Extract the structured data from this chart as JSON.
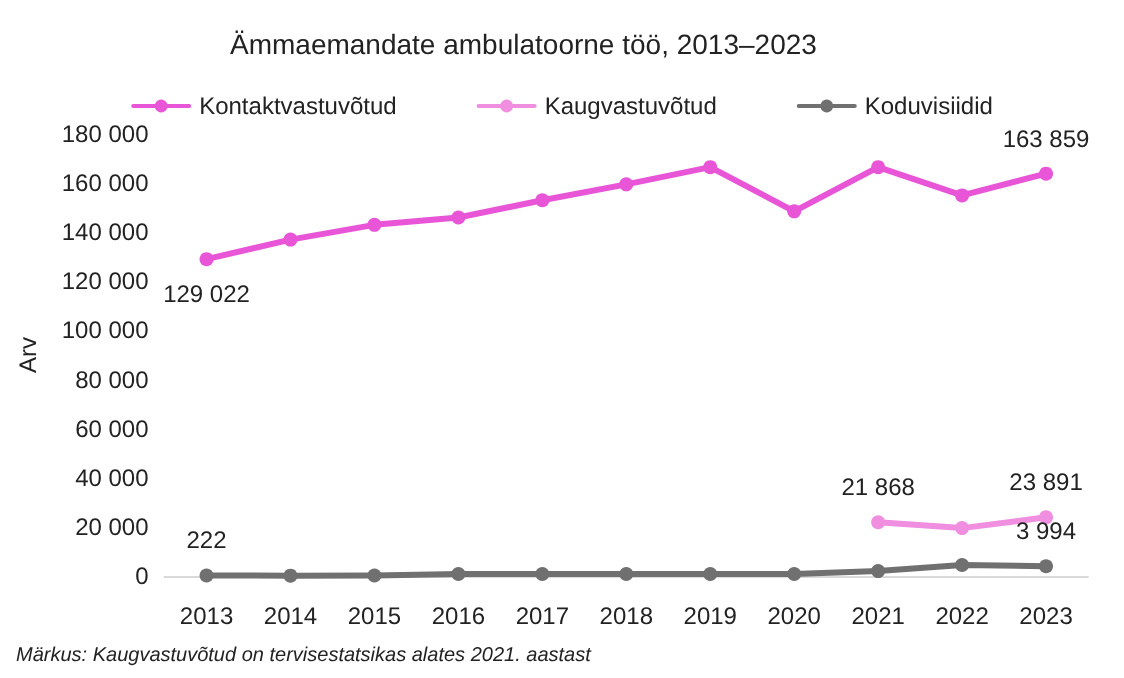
{
  "chart_data": {
    "type": "line",
    "title": "Ämmaemandate ambulatoorne töö, 2013–2023",
    "ylabel": "Arv",
    "annotations": [
      "Märkus: Kaugvastuvõtud on tervisestatsikas alates 2021. aastast"
    ],
    "categories": [
      "2013",
      "2014",
      "2015",
      "2016",
      "2017",
      "2018",
      "2019",
      "2020",
      "2021",
      "2022",
      "2023"
    ],
    "series": [
      {
        "name": "Kontaktvastuvõtud",
        "color": "#e855d6",
        "values": [
          129022,
          137000,
          143000,
          146000,
          153000,
          159500,
          166500,
          148500,
          166500,
          155000,
          163859
        ],
        "value_labels": [
          "129 022",
          null,
          null,
          null,
          null,
          null,
          null,
          null,
          null,
          null,
          "163 859"
        ]
      },
      {
        "name": "Kaugvastuvõtud",
        "color": "#f08ee0",
        "values": [
          null,
          null,
          null,
          null,
          null,
          null,
          null,
          null,
          21868,
          19500,
          23891
        ],
        "value_labels": [
          null,
          null,
          null,
          null,
          null,
          null,
          null,
          null,
          "21 868",
          null,
          "23 891"
        ]
      },
      {
        "name": "Koduvisiidid",
        "color": "#707070",
        "values": [
          222,
          150,
          200,
          800,
          800,
          800,
          800,
          800,
          2000,
          4500,
          3994
        ],
        "value_labels": [
          "222",
          null,
          null,
          null,
          null,
          null,
          null,
          null,
          null,
          null,
          "3 994"
        ]
      }
    ],
    "ylim": [
      0,
      180000
    ],
    "yticks": [
      0,
      20000,
      40000,
      60000,
      80000,
      100000,
      120000,
      140000,
      160000,
      180000
    ],
    "grid": false,
    "legend": "top",
    "marker": "circle",
    "line_style": "solid"
  }
}
